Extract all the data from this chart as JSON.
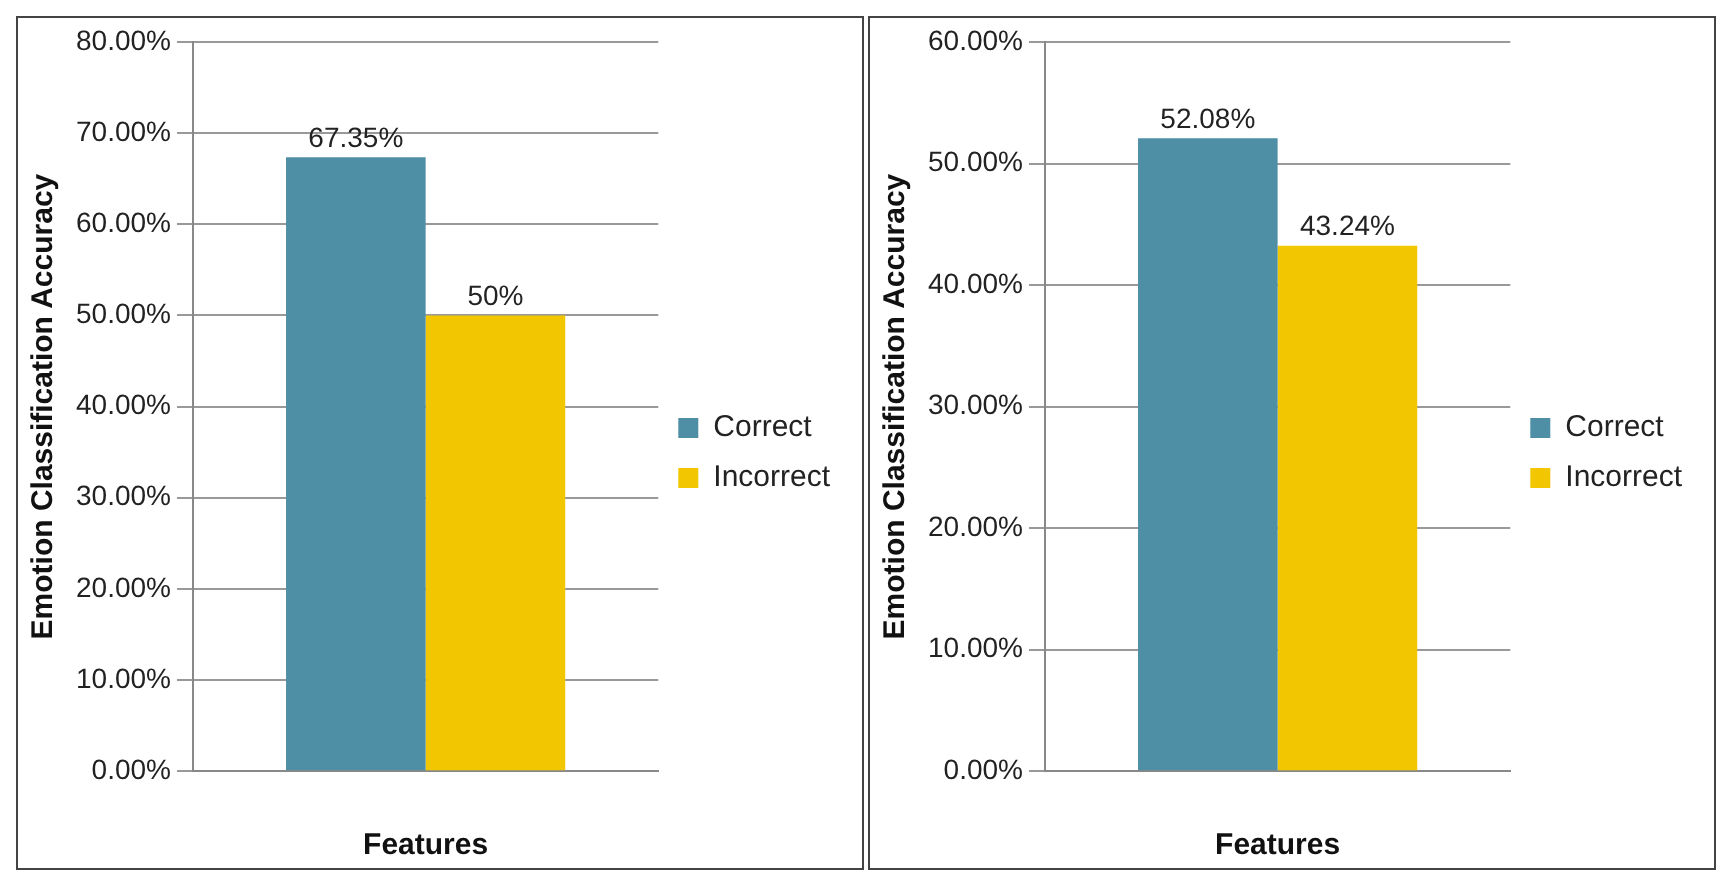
{
  "chart_data": [
    {
      "type": "bar",
      "categories": [
        null
      ],
      "xlabel": "Features",
      "ylabel": "Emotion Classification Accuracy",
      "series": [
        {
          "name": "Correct",
          "color": "#4f8fa6",
          "values": [
            67.35
          ],
          "value_labels": [
            "67.35%"
          ]
        },
        {
          "name": "Incorrect",
          "color": "#f2c600",
          "values": [
            50
          ],
          "value_labels": [
            "50%"
          ]
        }
      ],
      "ylim": [
        0,
        80
      ],
      "yticks": [
        {
          "value": 0,
          "label": "0.00%"
        },
        {
          "value": 10,
          "label": "10.00%"
        },
        {
          "value": 20,
          "label": "20.00%"
        },
        {
          "value": 30,
          "label": "30.00%"
        },
        {
          "value": 40,
          "label": "40.00%"
        },
        {
          "value": 50,
          "label": "50.00%"
        },
        {
          "value": 60,
          "label": "60.00%"
        },
        {
          "value": 70,
          "label": "70.00%"
        },
        {
          "value": 80,
          "label": "80.00%"
        }
      ],
      "grid": "y",
      "legend": "right"
    },
    {
      "type": "bar",
      "categories": [
        null
      ],
      "xlabel": "Features",
      "ylabel": "Emotion Classification Accuracy",
      "series": [
        {
          "name": "Correct",
          "color": "#4f8fa6",
          "values": [
            52.08
          ],
          "value_labels": [
            "52.08%"
          ]
        },
        {
          "name": "Incorrect",
          "color": "#f2c600",
          "values": [
            43.24
          ],
          "value_labels": [
            "43.24%"
          ]
        }
      ],
      "ylim": [
        0,
        60
      ],
      "yticks": [
        {
          "value": 0,
          "label": "0.00%"
        },
        {
          "value": 10,
          "label": "10.00%"
        },
        {
          "value": 20,
          "label": "20.00%"
        },
        {
          "value": 30,
          "label": "30.00%"
        },
        {
          "value": 40,
          "label": "40.00%"
        },
        {
          "value": 50,
          "label": "50.00%"
        },
        {
          "value": 60,
          "label": "60.00%"
        }
      ],
      "grid": "y",
      "legend": "right"
    }
  ]
}
